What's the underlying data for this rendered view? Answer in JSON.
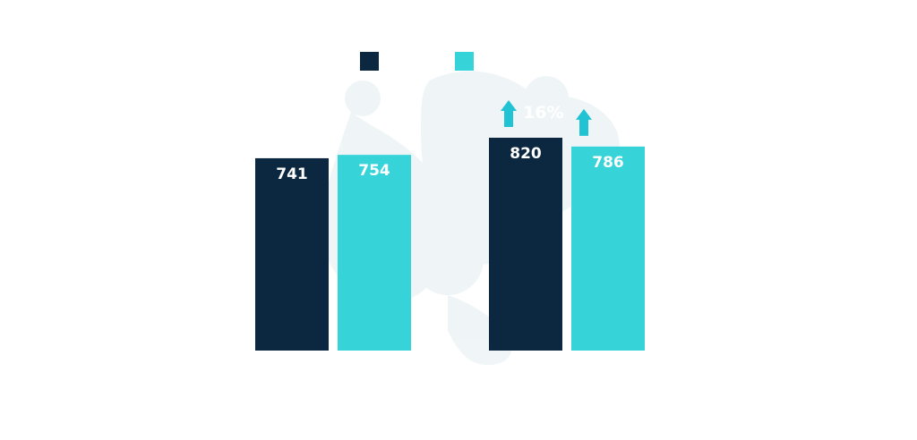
{
  "chart_data": {
    "type": "bar",
    "categories": [
      "",
      ""
    ],
    "series": [
      {
        "color": "#0c2840",
        "values": [
          741,
          754
        ]
      },
      {
        "color": "#36d4d8",
        "values": [
          820,
          786
        ]
      }
    ],
    "ylim": [
      0,
      820
    ],
    "grid": false,
    "legend_position": "top-center",
    "annotations": [
      {
        "text": "16%",
        "direction": "up"
      },
      {
        "text": "",
        "direction": "up"
      }
    ],
    "arrow_color": "#1fc3d3"
  }
}
